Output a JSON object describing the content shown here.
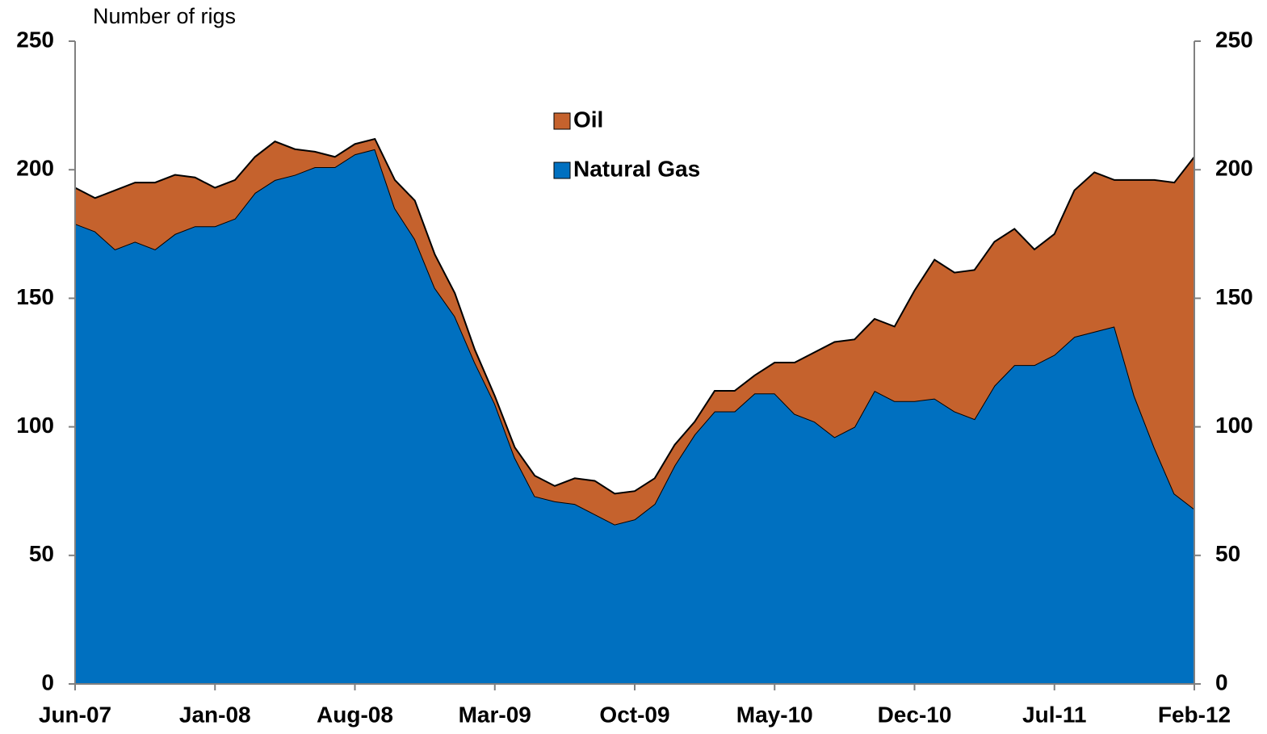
{
  "chart_data": {
    "type": "stacked_area",
    "y_label": "Number of rigs",
    "categories": [
      "Jun-07",
      null,
      null,
      null,
      null,
      null,
      null,
      "Jan-08",
      null,
      null,
      null,
      null,
      null,
      null,
      "Aug-08",
      null,
      null,
      null,
      null,
      null,
      null,
      "Mar-09",
      null,
      null,
      null,
      null,
      null,
      null,
      "Oct-09",
      null,
      null,
      null,
      null,
      null,
      null,
      "May-10",
      null,
      null,
      null,
      null,
      null,
      null,
      "Dec-10",
      null,
      null,
      null,
      null,
      null,
      null,
      "Jul-11",
      null,
      null,
      null,
      null,
      null,
      null,
      "Feb-12"
    ],
    "series": [
      {
        "name": "Natural Gas",
        "color": "#0070c0",
        "values": [
          179,
          176,
          169,
          172,
          169,
          175,
          178,
          178,
          181,
          191,
          196,
          198,
          201,
          201,
          206,
          208,
          185,
          173,
          154,
          143,
          125,
          109,
          88,
          73,
          71,
          70,
          66,
          62,
          64,
          70,
          85,
          97,
          106,
          106,
          113,
          113,
          105,
          102,
          96,
          100,
          114,
          110,
          110,
          111,
          106,
          103,
          116,
          124,
          124,
          128,
          135,
          137,
          139,
          112,
          92,
          74,
          68
        ]
      },
      {
        "name": "Oil",
        "color": "#c5622d",
        "values": [
          14,
          13,
          23,
          23,
          26,
          23,
          19,
          15,
          15,
          14,
          15,
          10,
          6,
          4,
          4,
          4,
          11,
          15,
          13,
          9,
          5,
          3,
          4,
          8,
          6,
          10,
          13,
          12,
          11,
          10,
          8,
          5,
          8,
          8,
          7,
          12,
          20,
          27,
          37,
          34,
          28,
          29,
          43,
          54,
          54,
          58,
          56,
          53,
          45,
          47,
          57,
          62,
          57,
          84,
          104,
          121,
          137
        ]
      }
    ],
    "ylim": [
      0,
      250
    ],
    "yticks": [
      0,
      50,
      100,
      150,
      200,
      250
    ],
    "y2lim": [
      0,
      250
    ],
    "y2ticks": [
      0,
      50,
      100,
      150,
      200,
      250
    ],
    "legend": "top-center"
  }
}
